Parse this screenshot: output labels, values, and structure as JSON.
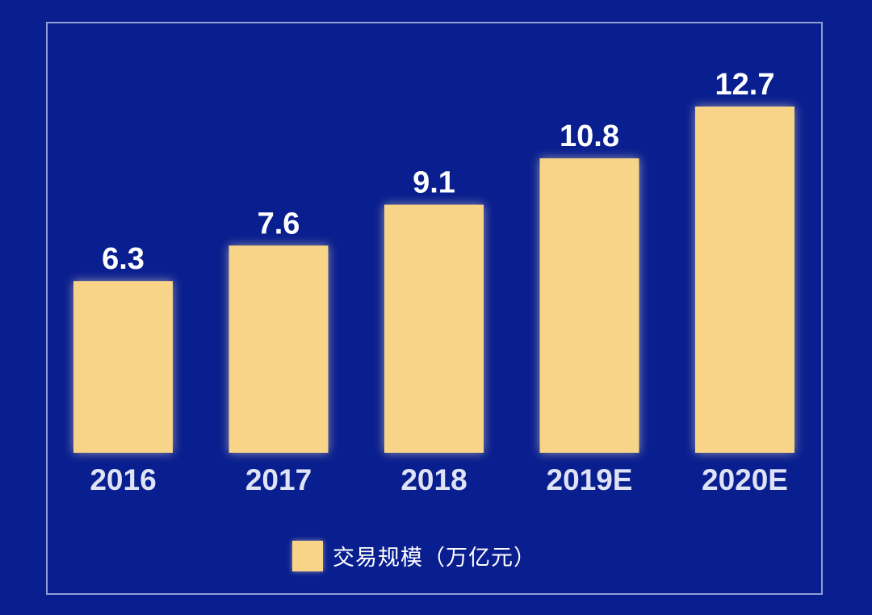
{
  "colors": {
    "background": "#0a1f8f",
    "frame": "#8f9fd6",
    "bar": "#f7d488",
    "value_text": "#ffffff",
    "category_text": "#dfe3f5"
  },
  "chart_data": {
    "type": "bar",
    "categories": [
      "2016",
      "2017",
      "2018",
      "2019E",
      "2020E"
    ],
    "series": [
      {
        "name": "交易规模（万亿元）",
        "values": [
          6.3,
          7.6,
          9.1,
          10.8,
          12.7
        ]
      }
    ],
    "data_labels": [
      "6.3",
      "7.6",
      "9.1",
      "10.8",
      "12.7"
    ],
    "ylim": [
      0,
      12.7
    ],
    "grid": false,
    "legend_position": "bottom-center"
  }
}
